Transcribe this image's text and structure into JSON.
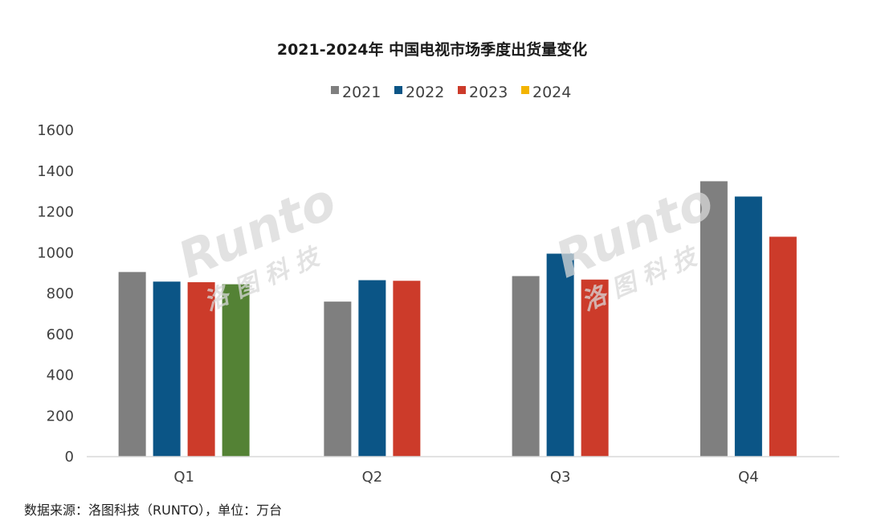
{
  "chart_data": {
    "type": "bar",
    "title": "2021-2024年 中国电视市场季度出货量变化",
    "categories": [
      "Q1",
      "Q2",
      "Q3",
      "Q4"
    ],
    "series": [
      {
        "name": "2021",
        "values": [
          905,
          760,
          885,
          1350
        ],
        "color": "#7f7f7f"
      },
      {
        "name": "2022",
        "values": [
          858,
          865,
          995,
          1275
        ],
        "color": "#0b5586"
      },
      {
        "name": "2023",
        "values": [
          855,
          862,
          868,
          1078
        ],
        "color": "#cc3b2a"
      },
      {
        "name": "2024",
        "values": [
          845,
          null,
          null,
          null
        ],
        "color": "#f3b400",
        "bar_color": "#548235"
      }
    ],
    "ylim": [
      0,
      1600
    ],
    "yticks": [
      "0",
      "200",
      "400",
      "600",
      "800",
      "1000",
      "1200",
      "1400",
      "1600"
    ],
    "legend_position": "top-center",
    "grid": false
  },
  "source": "数据来源：洛图科技（RUNTO），单位：万台",
  "watermark": {
    "latin": "Runto",
    "cjk": "洛 图 科 技"
  }
}
